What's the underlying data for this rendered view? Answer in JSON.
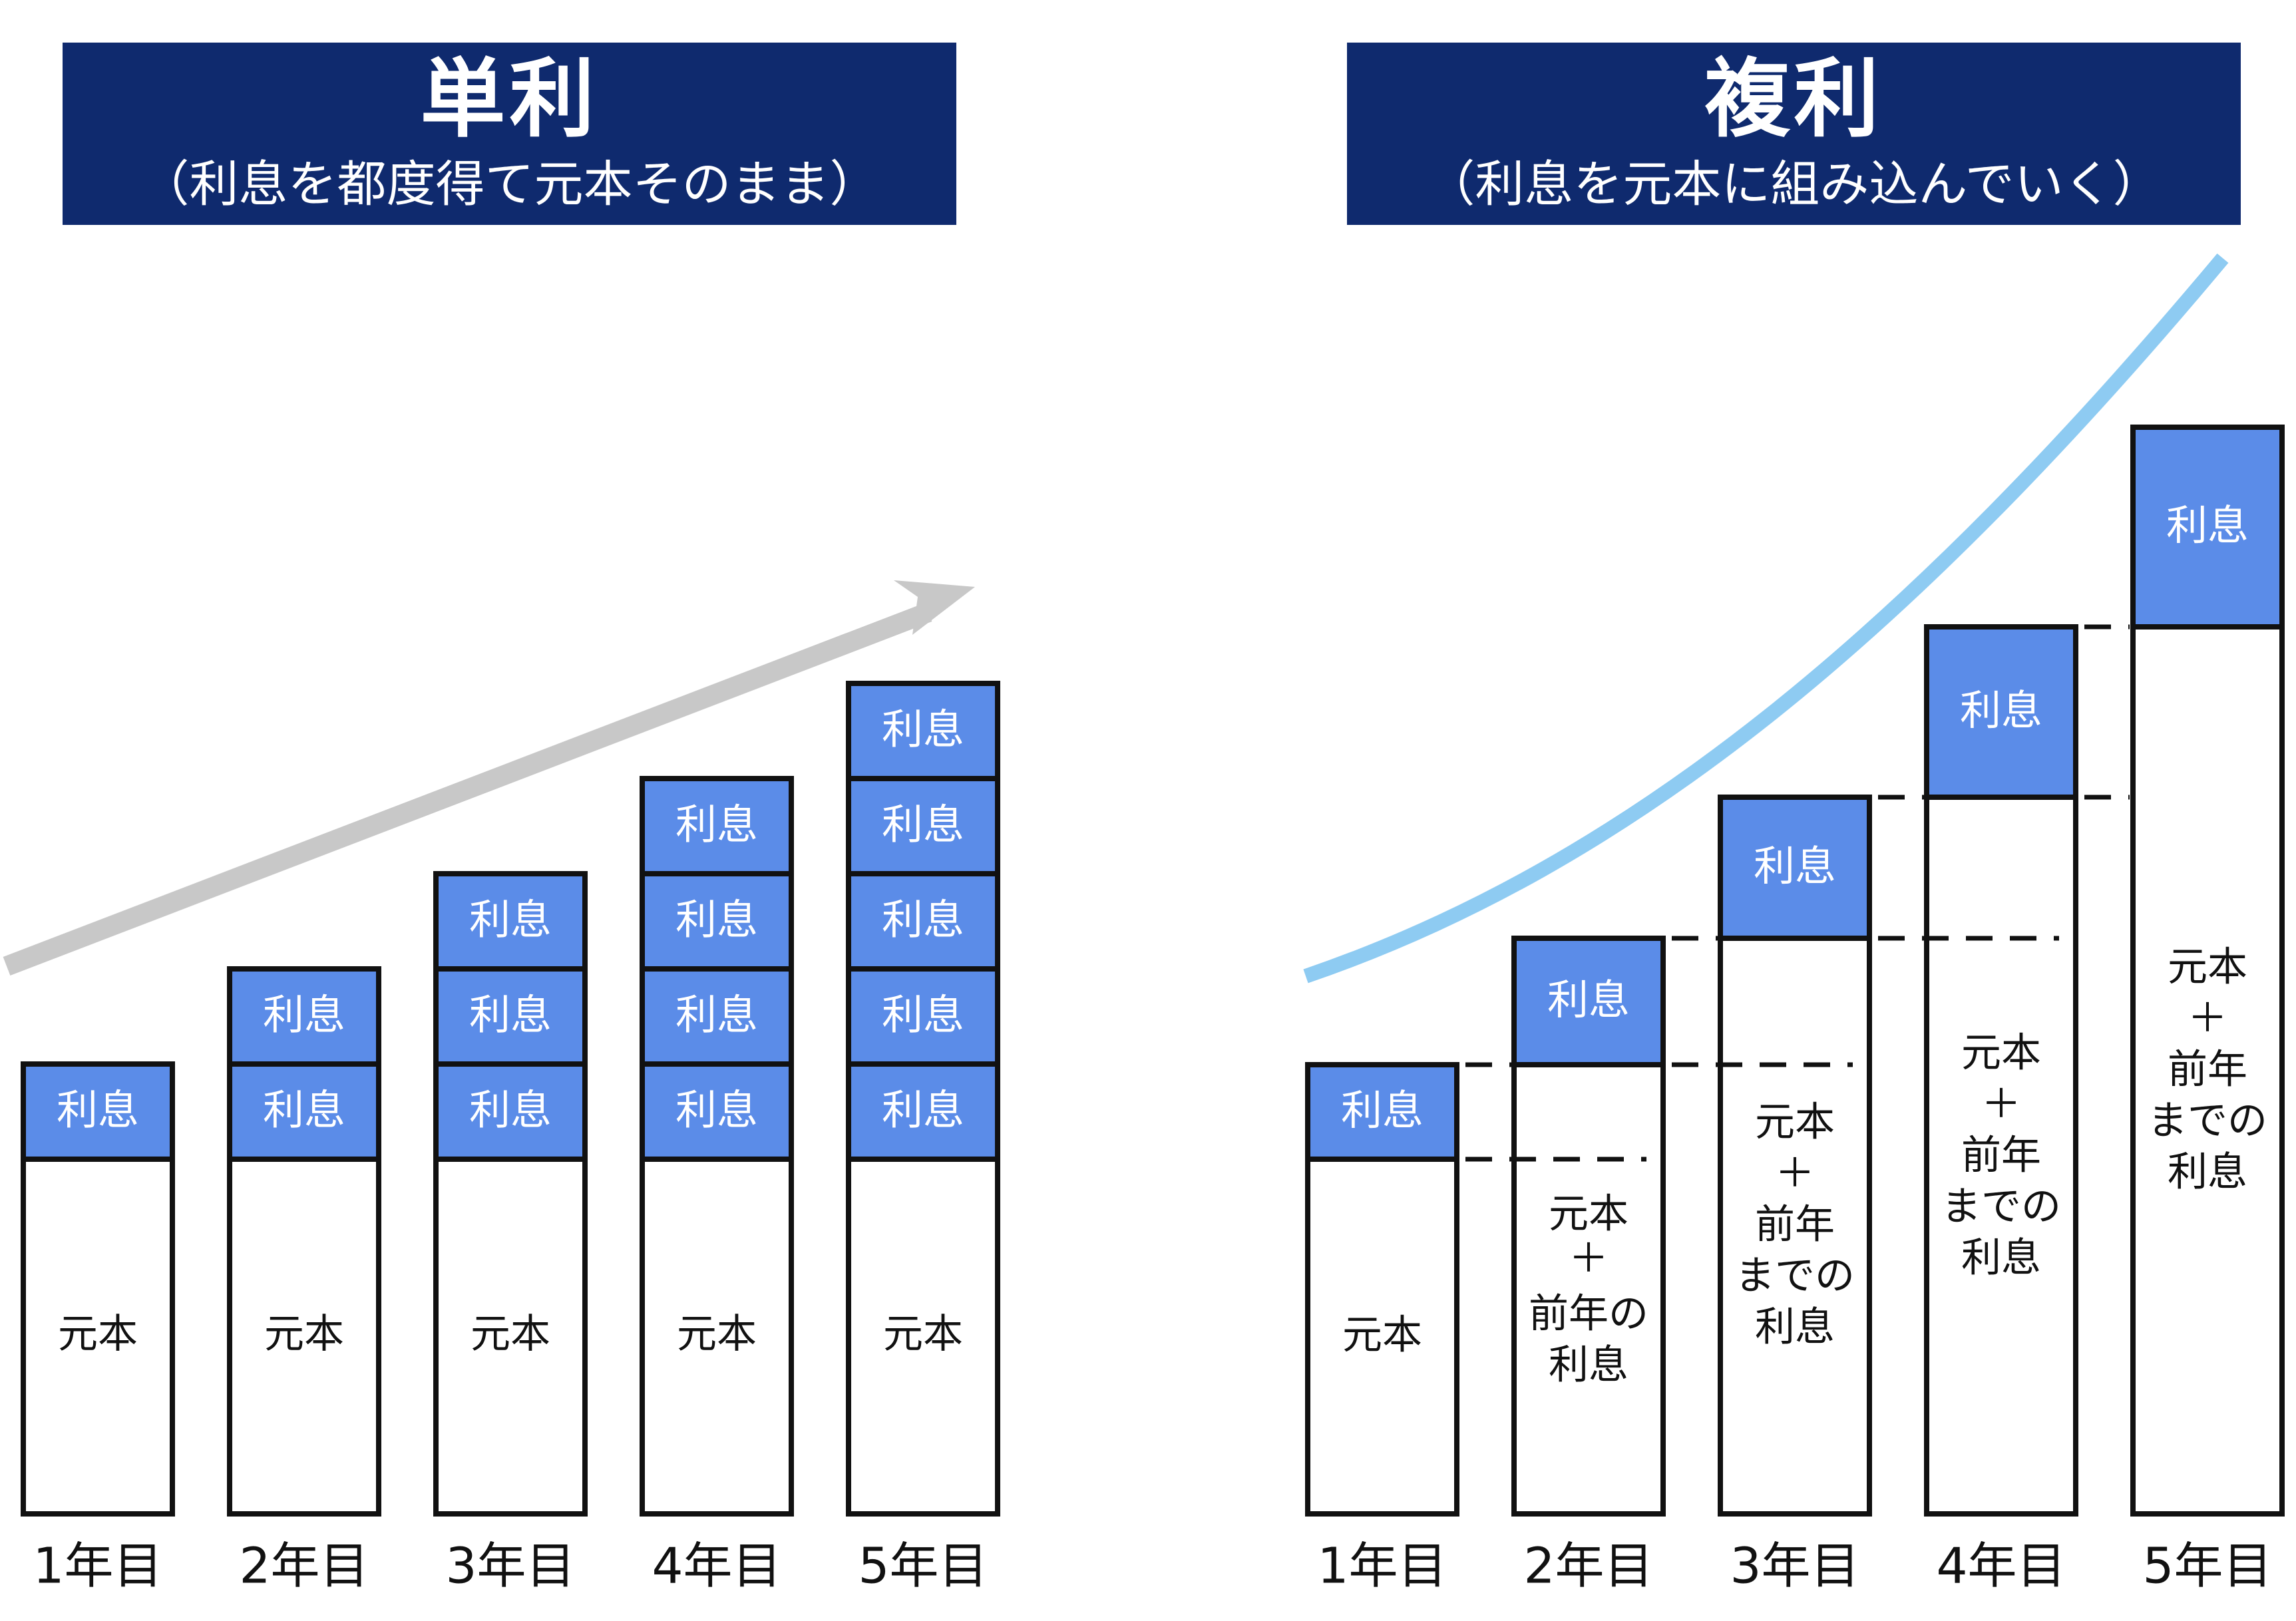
{
  "simple": {
    "title": "単利",
    "subtitle": "（利息を都度得て元本そのまま）",
    "principal_label": "元本",
    "interest_label": "利息",
    "interest_counts": [
      1,
      2,
      3,
      4,
      5
    ]
  },
  "compound": {
    "title": "複利",
    "subtitle": "（利息を元本に組み込んでいく）",
    "interest_label": "利息",
    "principal_labels": [
      [
        "元本"
      ],
      [
        "元本",
        "＋",
        "前年の",
        "利息"
      ],
      [
        "元本",
        "＋",
        "前年",
        "までの",
        "利息"
      ],
      [
        "元本",
        "＋",
        "前年",
        "までの",
        "利息"
      ],
      [
        "元本",
        "＋",
        "前年",
        "までの",
        "利息"
      ]
    ]
  },
  "years": [
    "1年目",
    "2年目",
    "3年目",
    "4年目",
    "5年目"
  ],
  "colors": {
    "banner": "#0f2a6e",
    "interest": "#5b8ce8",
    "arrow": "#c8c8c8",
    "curve": "#8ecbf2",
    "outline": "#111111"
  }
}
